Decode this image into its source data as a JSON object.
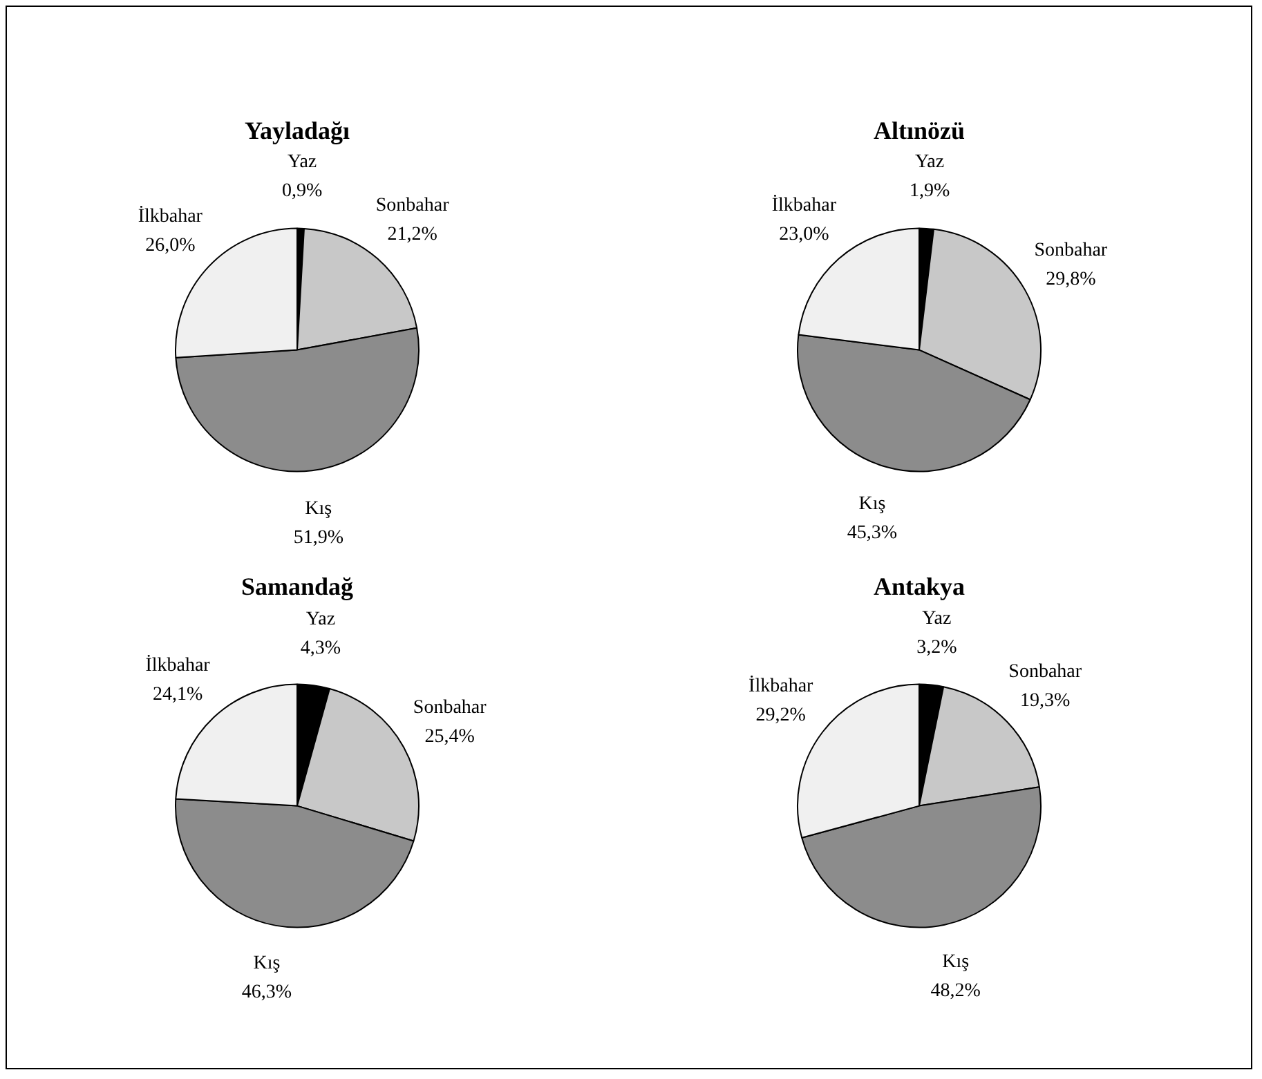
{
  "chart_data": [
    {
      "type": "pie",
      "title": "Yayladağı",
      "categories": [
        "Yaz",
        "Sonbahar",
        "Kış",
        "İlkbahar"
      ],
      "values": [
        0.9,
        21.2,
        51.9,
        26.0
      ],
      "value_labels": [
        "0,9%",
        "21,2%",
        "51,9%",
        "26,0%"
      ],
      "colors": [
        "#000000",
        "#c8c8c8",
        "#8c8c8c",
        "#f0f0f0"
      ]
    },
    {
      "type": "pie",
      "title": "Altınözü",
      "categories": [
        "Yaz",
        "Sonbahar",
        "Kış",
        "İlkbahar"
      ],
      "values": [
        1.9,
        29.8,
        45.3,
        23.0
      ],
      "value_labels": [
        "1,9%",
        "29,8%",
        "45,3%",
        "23,0%"
      ],
      "colors": [
        "#000000",
        "#c8c8c8",
        "#8c8c8c",
        "#f0f0f0"
      ]
    },
    {
      "type": "pie",
      "title": "Samandağ",
      "categories": [
        "Yaz",
        "Sonbahar",
        "Kış",
        "İlkbahar"
      ],
      "values": [
        4.3,
        25.4,
        46.3,
        24.1
      ],
      "value_labels": [
        "4,3%",
        "25,4%",
        "46,3%",
        "24,1%"
      ],
      "colors": [
        "#000000",
        "#c8c8c8",
        "#8c8c8c",
        "#f0f0f0"
      ]
    },
    {
      "type": "pie",
      "title": "Antakya",
      "categories": [
        "Yaz",
        "Sonbahar",
        "Kış",
        "İlkbahar"
      ],
      "values": [
        3.2,
        19.3,
        48.2,
        29.2
      ],
      "value_labels": [
        "3,2%",
        "19,3%",
        "48,2%",
        "29,2%"
      ],
      "colors": [
        "#000000",
        "#c8c8c8",
        "#8c8c8c",
        "#f0f0f0"
      ]
    }
  ]
}
